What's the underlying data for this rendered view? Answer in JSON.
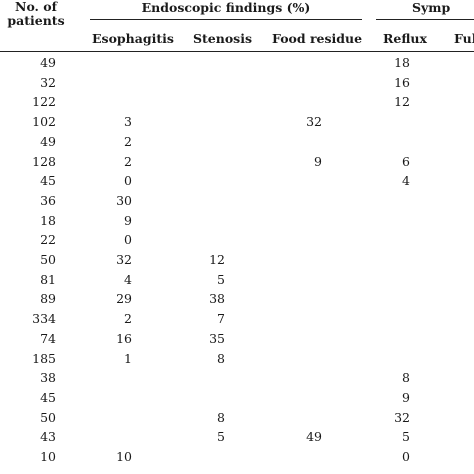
{
  "header": {
    "patients_line1": "No. of",
    "patients_line2": "patients",
    "endoscopic_group": "Endoscopic findings (%)",
    "symptoms_group": "Symp",
    "esophagitis": "Esophagitis",
    "stenosis": "Stenosis",
    "food_residue": "Food residue",
    "reflux": "Reflux",
    "fullness": "Ful"
  },
  "rows": [
    {
      "n": "49",
      "esophagitis": "",
      "stenosis": "",
      "food": "",
      "reflux": "18"
    },
    {
      "n": "32",
      "esophagitis": "",
      "stenosis": "",
      "food": "",
      "reflux": "16"
    },
    {
      "n": "122",
      "esophagitis": "",
      "stenosis": "",
      "food": "",
      "reflux": "12"
    },
    {
      "n": "102",
      "esophagitis": "3",
      "stenosis": "",
      "food": "32",
      "reflux": ""
    },
    {
      "n": "49",
      "esophagitis": "2",
      "stenosis": "",
      "food": "",
      "reflux": ""
    },
    {
      "n": "128",
      "esophagitis": "2",
      "stenosis": "",
      "food": "9",
      "reflux": "6"
    },
    {
      "n": "45",
      "esophagitis": "0",
      "stenosis": "",
      "food": "",
      "reflux": "4"
    },
    {
      "n": "36",
      "esophagitis": "30",
      "stenosis": "",
      "food": "",
      "reflux": ""
    },
    {
      "n": "18",
      "esophagitis": "9",
      "stenosis": "",
      "food": "",
      "reflux": ""
    },
    {
      "n": "22",
      "esophagitis": "0",
      "stenosis": "",
      "food": "",
      "reflux": ""
    },
    {
      "n": "50",
      "esophagitis": "32",
      "stenosis": "12",
      "food": "",
      "reflux": ""
    },
    {
      "n": "81",
      "esophagitis": "4",
      "stenosis": "5",
      "food": "",
      "reflux": ""
    },
    {
      "n": "89",
      "esophagitis": "29",
      "stenosis": "38",
      "food": "",
      "reflux": ""
    },
    {
      "n": "334",
      "esophagitis": "2",
      "stenosis": "7",
      "food": "",
      "reflux": ""
    },
    {
      "n": "74",
      "esophagitis": "16",
      "stenosis": "35",
      "food": "",
      "reflux": ""
    },
    {
      "n": "185",
      "esophagitis": "1",
      "stenosis": "8",
      "food": "",
      "reflux": ""
    },
    {
      "n": "38",
      "esophagitis": "",
      "stenosis": "",
      "food": "",
      "reflux": "8"
    },
    {
      "n": "45",
      "esophagitis": "",
      "stenosis": "",
      "food": "",
      "reflux": "9"
    },
    {
      "n": "50",
      "esophagitis": "",
      "stenosis": "8",
      "food": "",
      "reflux": "32"
    },
    {
      "n": "43",
      "esophagitis": "",
      "stenosis": "5",
      "food": "49",
      "reflux": "5"
    },
    {
      "n": "10",
      "esophagitis": "10",
      "stenosis": "",
      "food": "",
      "reflux": "0"
    }
  ]
}
